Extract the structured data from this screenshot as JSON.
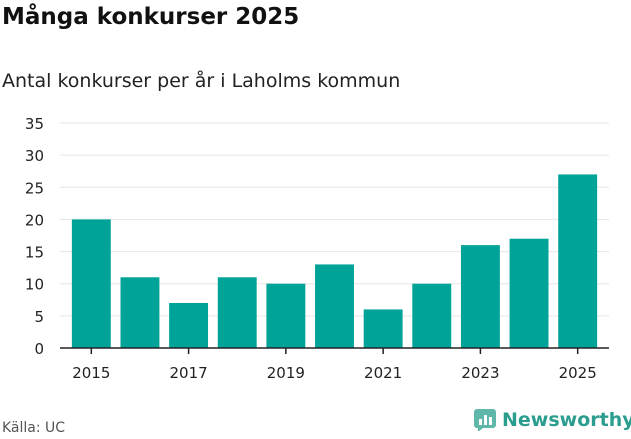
{
  "title": "Många konkurser 2025",
  "subtitle": "Antal konkurser per år i Laholms kommun",
  "source": "Källa: UC",
  "brand": "Newsworthy",
  "colors": {
    "bar": "#00a398",
    "grid": "#e6e6e6",
    "axis": "#222222",
    "brand": "#2a9d8f"
  },
  "chart_data": {
    "type": "bar",
    "title": "Många konkurser 2025",
    "subtitle": "Antal konkurser per år i Laholms kommun",
    "categories": [
      "2015",
      "2016",
      "2017",
      "2018",
      "2019",
      "2020",
      "2021",
      "2022",
      "2023",
      "2024",
      "2025"
    ],
    "values": [
      20,
      11,
      7,
      11,
      10,
      13,
      6,
      10,
      16,
      17,
      27
    ],
    "x_tick_labels": [
      "2015",
      "2017",
      "2019",
      "2021",
      "2023",
      "2025"
    ],
    "y_ticks": [
      0,
      5,
      10,
      15,
      20,
      25,
      30,
      35
    ],
    "ylim": [
      0,
      35
    ],
    "grid": true,
    "legend": "none"
  }
}
